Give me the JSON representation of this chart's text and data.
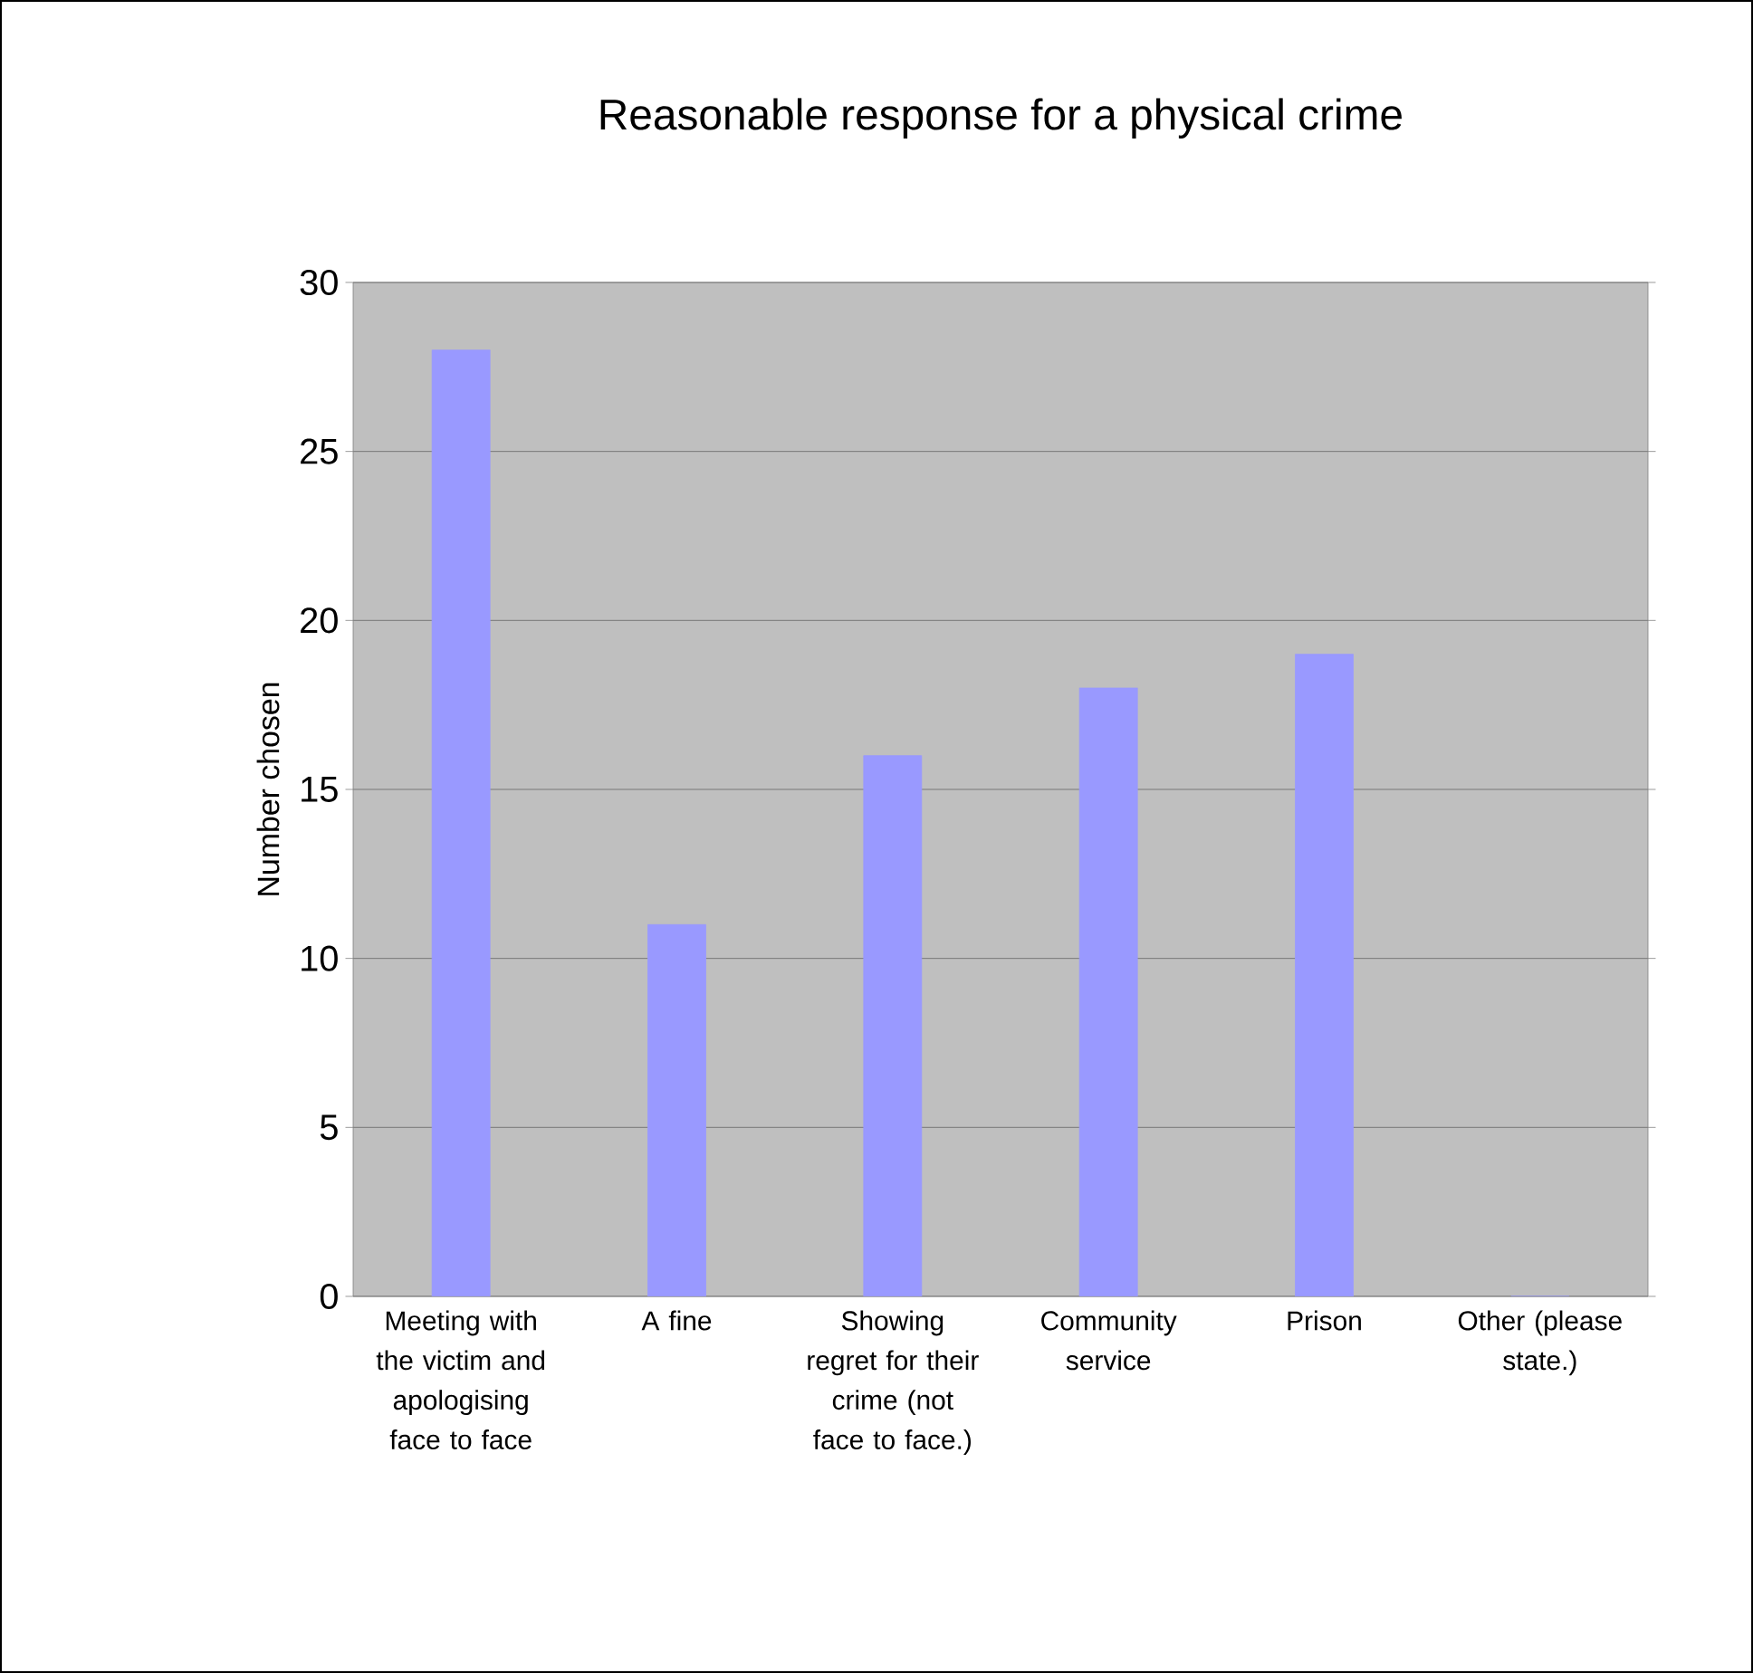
{
  "chart_data": {
    "type": "bar",
    "title": "Reasonable response for a physical crime",
    "ylabel": "Number chosen",
    "categories": [
      "Meeting with the victim and apologising face to face",
      "A fine",
      "Showing regret for their crime (not face to face.)",
      "Community service",
      "Prison",
      "Other (please state.)"
    ],
    "values": [
      28,
      11,
      16,
      18,
      19,
      0
    ],
    "color": "#9999ff",
    "ylim": [
      0,
      30
    ],
    "yticks": [
      0,
      5,
      10,
      15,
      20,
      25,
      30
    ],
    "grid": "y"
  }
}
